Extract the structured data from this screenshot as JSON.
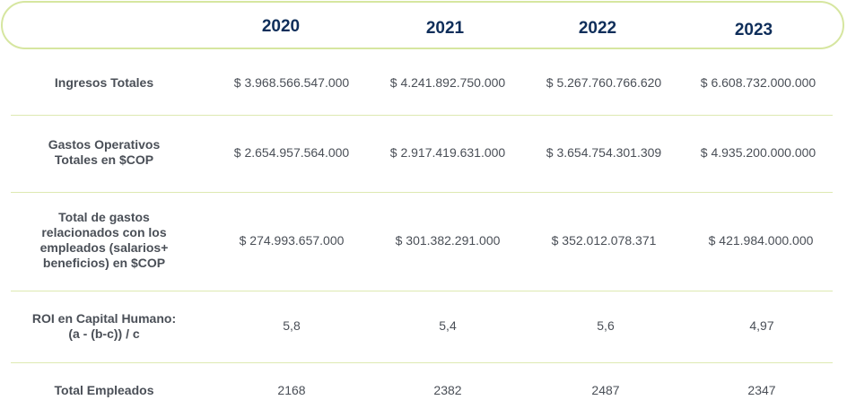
{
  "header": {
    "years": [
      "2020",
      "2021",
      "2022",
      "2023"
    ]
  },
  "rows": [
    {
      "label": "Ingresos Totales",
      "values": [
        "$ 3.968.566.547.000",
        "$ 4.241.892.750.000",
        "$ 5.267.760.766.620",
        "$ 6.608.732.000.000"
      ]
    },
    {
      "label_lines": [
        "Gastos Operativos",
        "Totales en $COP"
      ],
      "values": [
        "$ 2.654.957.564.000",
        "$ 2.917.419.631.000",
        "$ 3.654.754.301.309",
        "$ 4.935.200.000.000"
      ]
    },
    {
      "label_lines": [
        "Total de gastos",
        "relacionados con los",
        "empleados (salarios+",
        "beneficios) en $COP"
      ],
      "values": [
        "$ 274.993.657.000",
        "$  301.382.291.000",
        "$ 352.012.078.371",
        "$ 421.984.000.000"
      ]
    },
    {
      "label_lines": [
        "ROI en Capital Humano:",
        "(a - (b-c)) / c"
      ],
      "values": [
        "5,8",
        "5,4",
        "5,6",
        "4,97"
      ]
    },
    {
      "label": "Total Empleados",
      "values": [
        "2168",
        "2382",
        "2487",
        "2347"
      ]
    }
  ]
}
